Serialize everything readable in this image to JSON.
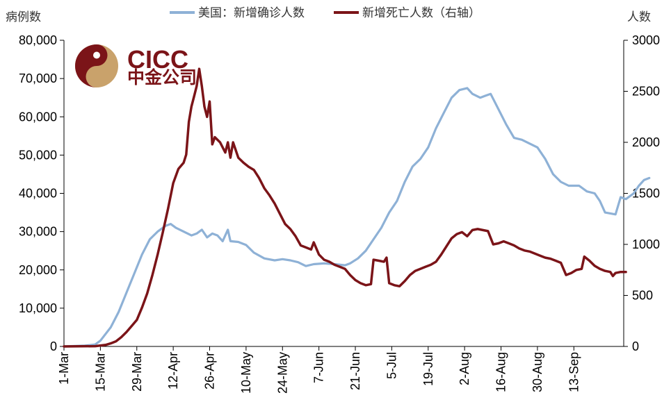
{
  "chart_data": {
    "type": "line",
    "left_axis_title": "病例数",
    "right_axis_title": "人数",
    "left_ylim": [
      0,
      80000
    ],
    "right_ylim": [
      0,
      3000
    ],
    "left_ticks": [
      "0",
      "10,000",
      "20,000",
      "30,000",
      "40,000",
      "50,000",
      "60,000",
      "70,000",
      "80,000"
    ],
    "right_ticks": [
      "0",
      "500",
      "1000",
      "1500",
      "2000",
      "2500",
      "3000"
    ],
    "x_labels": [
      "1-Mar",
      "15-Mar",
      "29-Mar",
      "12-Apr",
      "26-Apr",
      "10-May",
      "24-May",
      "7-Jun",
      "21-Jun",
      "5-Jul",
      "19-Jul",
      "2-Aug",
      "16-Aug",
      "30-Aug",
      "13-Sep"
    ],
    "x_range_days": [
      0,
      210
    ],
    "legend_position": "top",
    "series": [
      {
        "name": "美国：新增确诊人数",
        "axis": "left",
        "color": "#8eb1d6",
        "points": [
          [
            0,
            0
          ],
          [
            8,
            200
          ],
          [
            12,
            500
          ],
          [
            14,
            1500
          ],
          [
            18,
            5000
          ],
          [
            21,
            9000
          ],
          [
            24,
            14000
          ],
          [
            27,
            19000
          ],
          [
            30,
            24000
          ],
          [
            33,
            28000
          ],
          [
            36,
            30000
          ],
          [
            39,
            31500
          ],
          [
            41,
            32000
          ],
          [
            43,
            31000
          ],
          [
            46,
            30000
          ],
          [
            49,
            29000
          ],
          [
            51,
            29500
          ],
          [
            53,
            30500
          ],
          [
            55,
            28500
          ],
          [
            57,
            29500
          ],
          [
            59,
            29000
          ],
          [
            61,
            27500
          ],
          [
            62,
            29000
          ],
          [
            63,
            30500
          ],
          [
            64,
            27500
          ],
          [
            67,
            27300
          ],
          [
            70,
            26500
          ],
          [
            73,
            24500
          ],
          [
            77,
            23000
          ],
          [
            81,
            22500
          ],
          [
            84,
            22800
          ],
          [
            87,
            22500
          ],
          [
            90,
            22000
          ],
          [
            93,
            21000
          ],
          [
            96,
            21500
          ],
          [
            100,
            21700
          ],
          [
            104,
            21500
          ],
          [
            108,
            21200
          ],
          [
            110,
            21700
          ],
          [
            113,
            23000
          ],
          [
            116,
            25000
          ],
          [
            119,
            28000
          ],
          [
            122,
            31000
          ],
          [
            125,
            35000
          ],
          [
            128,
            38000
          ],
          [
            131,
            43000
          ],
          [
            134,
            47000
          ],
          [
            137,
            49000
          ],
          [
            140,
            52000
          ],
          [
            143,
            57000
          ],
          [
            146,
            61000
          ],
          [
            149,
            65000
          ],
          [
            152,
            67000
          ],
          [
            155,
            67500
          ],
          [
            157,
            66000
          ],
          [
            160,
            65000
          ],
          [
            162,
            65500
          ],
          [
            164,
            66000
          ],
          [
            167,
            62000
          ],
          [
            170,
            58000
          ],
          [
            173,
            54500
          ],
          [
            176,
            54000
          ],
          [
            179,
            53000
          ],
          [
            182,
            52000
          ],
          [
            185,
            49000
          ],
          [
            188,
            45000
          ],
          [
            191,
            43000
          ],
          [
            194,
            42000
          ],
          [
            198,
            42000
          ],
          [
            201,
            40500
          ],
          [
            204,
            40000
          ],
          [
            206,
            38000
          ],
          [
            208,
            35000
          ],
          [
            212,
            34500
          ],
          [
            214,
            39000
          ],
          [
            216,
            38500
          ],
          [
            219,
            40000
          ],
          [
            221,
            42000
          ],
          [
            223,
            43500
          ],
          [
            225,
            44000
          ]
        ]
      },
      {
        "name": "新增死亡人数（右轴）",
        "axis": "right",
        "color": "#7b1418",
        "points": [
          [
            0,
            0
          ],
          [
            12,
            3
          ],
          [
            16,
            15
          ],
          [
            18,
            30
          ],
          [
            20,
            50
          ],
          [
            22,
            90
          ],
          [
            24,
            140
          ],
          [
            26,
            200
          ],
          [
            28,
            260
          ],
          [
            30,
            380
          ],
          [
            32,
            520
          ],
          [
            34,
            700
          ],
          [
            36,
            900
          ],
          [
            38,
            1120
          ],
          [
            40,
            1350
          ],
          [
            42,
            1600
          ],
          [
            44,
            1740
          ],
          [
            46,
            1800
          ],
          [
            47,
            1880
          ],
          [
            48,
            2200
          ],
          [
            49,
            2350
          ],
          [
            50,
            2450
          ],
          [
            51,
            2550
          ],
          [
            52,
            2720
          ],
          [
            53,
            2550
          ],
          [
            54,
            2350
          ],
          [
            55,
            2250
          ],
          [
            56,
            2400
          ],
          [
            57,
            1980
          ],
          [
            58,
            2050
          ],
          [
            60,
            2000
          ],
          [
            62,
            1900
          ],
          [
            63,
            2000
          ],
          [
            64,
            1850
          ],
          [
            65,
            2000
          ],
          [
            67,
            1850
          ],
          [
            69,
            1800
          ],
          [
            71,
            1760
          ],
          [
            73,
            1730
          ],
          [
            75,
            1650
          ],
          [
            77,
            1550
          ],
          [
            79,
            1480
          ],
          [
            81,
            1400
          ],
          [
            83,
            1300
          ],
          [
            85,
            1200
          ],
          [
            87,
            1150
          ],
          [
            89,
            1080
          ],
          [
            91,
            990
          ],
          [
            93,
            970
          ],
          [
            95,
            950
          ],
          [
            96,
            1020
          ],
          [
            98,
            900
          ],
          [
            100,
            850
          ],
          [
            102,
            830
          ],
          [
            104,
            800
          ],
          [
            106,
            780
          ],
          [
            108,
            760
          ],
          [
            110,
            700
          ],
          [
            112,
            650
          ],
          [
            114,
            620
          ],
          [
            116,
            600
          ],
          [
            118,
            610
          ],
          [
            119,
            850
          ],
          [
            121,
            840
          ],
          [
            123,
            830
          ],
          [
            124,
            870
          ],
          [
            125,
            620
          ],
          [
            127,
            600
          ],
          [
            129,
            590
          ],
          [
            131,
            640
          ],
          [
            133,
            700
          ],
          [
            135,
            740
          ],
          [
            137,
            760
          ],
          [
            139,
            780
          ],
          [
            141,
            800
          ],
          [
            143,
            830
          ],
          [
            145,
            900
          ],
          [
            147,
            980
          ],
          [
            149,
            1060
          ],
          [
            151,
            1100
          ],
          [
            153,
            1120
          ],
          [
            155,
            1080
          ],
          [
            157,
            1140
          ],
          [
            159,
            1150
          ],
          [
            161,
            1140
          ],
          [
            163,
            1130
          ],
          [
            165,
            1000
          ],
          [
            167,
            1010
          ],
          [
            169,
            1030
          ],
          [
            171,
            1010
          ],
          [
            173,
            990
          ],
          [
            175,
            960
          ],
          [
            177,
            940
          ],
          [
            179,
            930
          ],
          [
            181,
            910
          ],
          [
            183,
            890
          ],
          [
            185,
            870
          ],
          [
            187,
            860
          ],
          [
            189,
            840
          ],
          [
            191,
            820
          ],
          [
            193,
            700
          ],
          [
            195,
            720
          ],
          [
            197,
            750
          ],
          [
            199,
            760
          ],
          [
            200,
            880
          ],
          [
            202,
            840
          ],
          [
            204,
            790
          ],
          [
            206,
            760
          ],
          [
            208,
            740
          ],
          [
            210,
            730
          ],
          [
            211,
            690
          ],
          [
            212,
            720
          ],
          [
            214,
            730
          ],
          [
            216,
            730
          ]
        ]
      }
    ]
  },
  "logo": {
    "latin": "CICC",
    "cjk": "中金公司",
    "color_primary": "#7b1418",
    "color_accent": "#c9a26b"
  }
}
